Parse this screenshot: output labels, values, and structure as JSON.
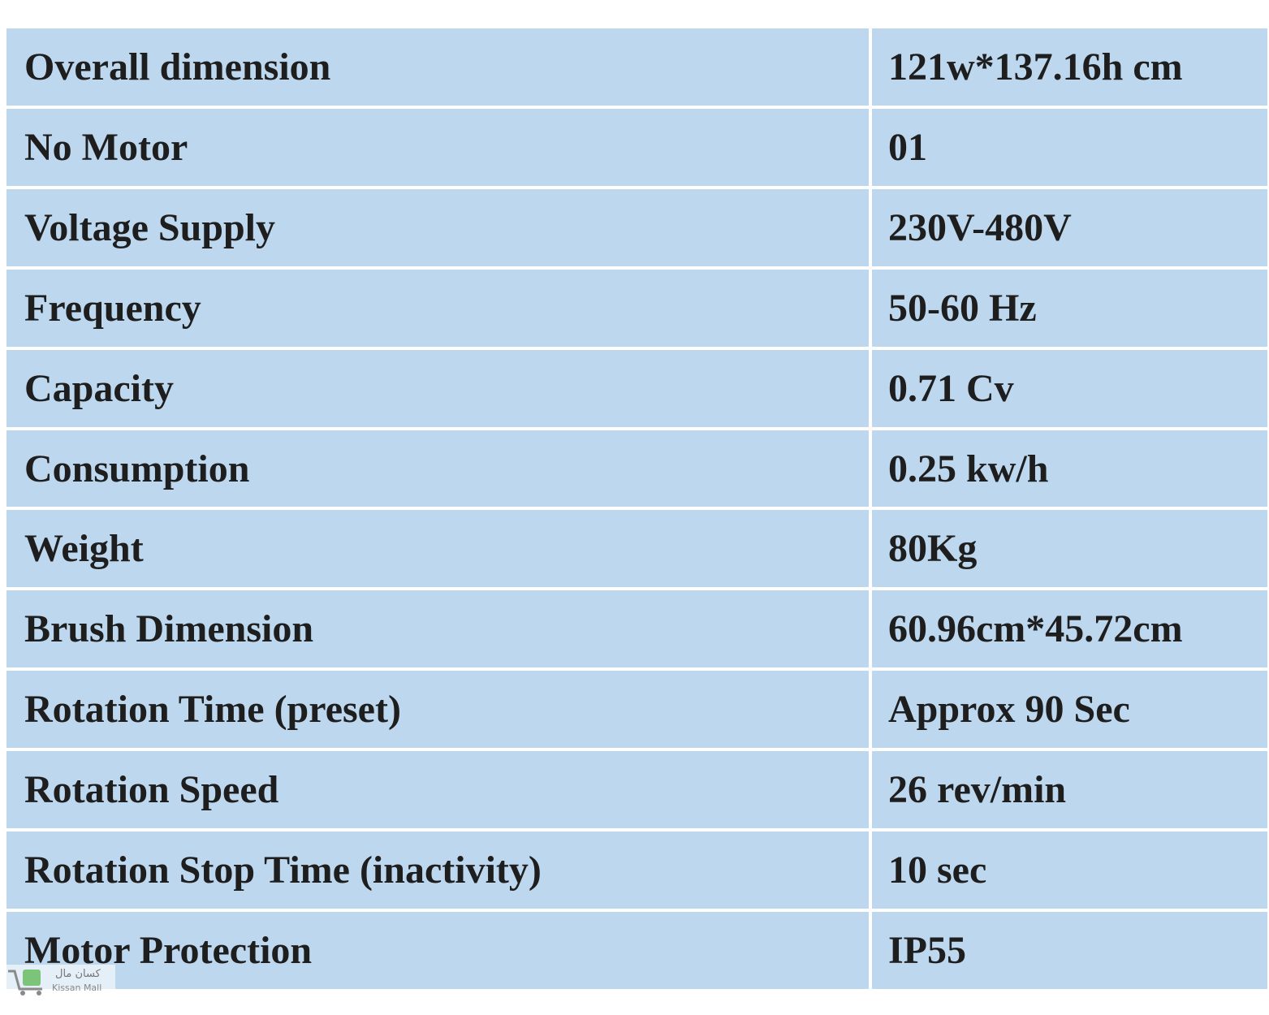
{
  "table": {
    "rows": [
      [
        "Overall dimension",
        "121w*137.16h cm"
      ],
      [
        "No Motor",
        "01"
      ],
      [
        "Voltage Supply",
        "230V-480V"
      ],
      [
        "Frequency",
        "50-60 Hz"
      ],
      [
        "Capacity",
        "0.71 Cv"
      ],
      [
        "Consumption",
        "0.25 kw/h"
      ],
      [
        "Weight",
        "80Kg"
      ],
      [
        "Brush Dimension",
        "60.96cm*45.72cm"
      ],
      [
        "Rotation Time (preset)",
        "Approx 90 Sec"
      ],
      [
        "Rotation Speed",
        "26 rev/min"
      ],
      [
        "Rotation Stop Time (inactivity)",
        "10 sec"
      ],
      [
        "Motor Protection",
        "IP55"
      ]
    ]
  },
  "watermark": {
    "name_local": "کسان مال",
    "name": "Kissan Mall"
  }
}
